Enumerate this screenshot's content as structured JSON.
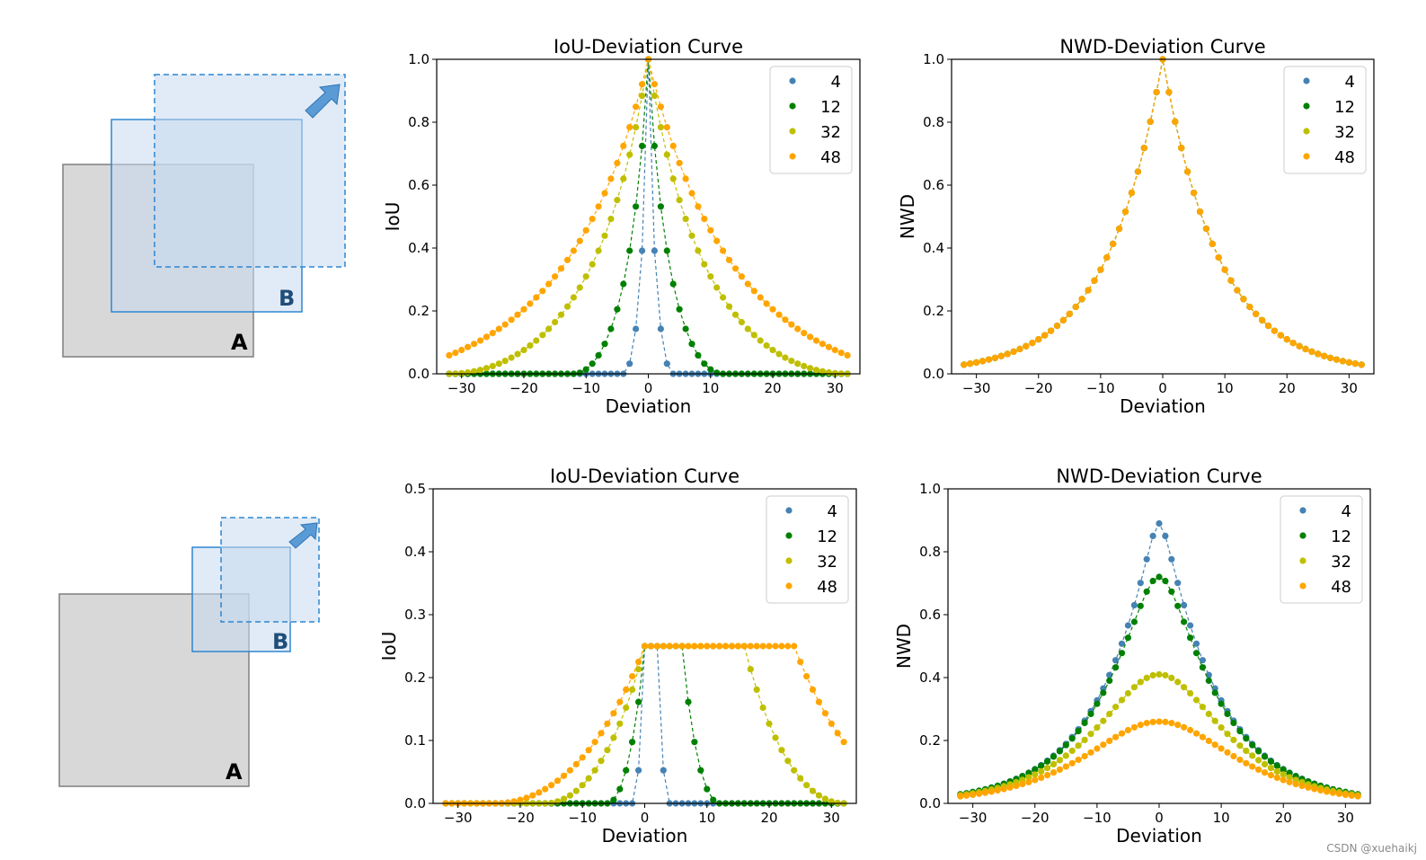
{
  "diagrams": [
    {
      "label_a": "A",
      "label_b": "B"
    },
    {
      "label_a": "A",
      "label_b": "B"
    }
  ],
  "colors": {
    "4": "#4682b4",
    "12": "#008000",
    "32": "#bfbf00",
    "48": "#ffa500",
    "box_a_fill": "#d6d6d6",
    "box_a_stroke": "#7f7f7f",
    "box_b_fill": "#c9daf0",
    "box_b_stroke": "#2e86d0",
    "label_b": "#1f4e79"
  },
  "chart_data": [
    {
      "id": "iou-top",
      "type": "scatter",
      "title": "IoU-Deviation Curve",
      "xlabel": "Deviation",
      "ylabel": "IoU",
      "xlim": [
        -34,
        34
      ],
      "ylim": [
        0,
        1.0
      ],
      "xticks": [
        -30,
        -20,
        -10,
        0,
        10,
        20,
        30
      ],
      "xtick_labels": [
        "−30",
        "−20",
        "−10",
        "0",
        "10",
        "20",
        "30"
      ],
      "yticks": [
        0.0,
        0.2,
        0.4,
        0.6,
        0.8,
        1.0
      ],
      "ytick_labels": [
        "0.0",
        "0.2",
        "0.4",
        "0.6",
        "0.8",
        "1.0"
      ],
      "legend": "top-right",
      "grid": false,
      "x": "deviation -32..32 step 1",
      "series": [
        {
          "name": "4",
          "box_size": 4,
          "curve": "iou_identical"
        },
        {
          "name": "12",
          "box_size": 12,
          "curve": "iou_identical"
        },
        {
          "name": "32",
          "box_size": 32,
          "curve": "iou_identical"
        },
        {
          "name": "48",
          "box_size": 48,
          "curve": "iou_identical"
        }
      ]
    },
    {
      "id": "nwd-top",
      "type": "scatter",
      "title": "NWD-Deviation Curve",
      "xlabel": "Deviation",
      "ylabel": "NWD",
      "xlim": [
        -34,
        34
      ],
      "ylim": [
        0,
        1.0
      ],
      "xticks": [
        -30,
        -20,
        -10,
        0,
        10,
        20,
        30
      ],
      "xtick_labels": [
        "−30",
        "−20",
        "−10",
        "0",
        "10",
        "20",
        "30"
      ],
      "yticks": [
        0.0,
        0.2,
        0.4,
        0.6,
        0.8,
        1.0
      ],
      "ytick_labels": [
        "0.0",
        "0.2",
        "0.4",
        "0.6",
        "0.8",
        "1.0"
      ],
      "legend": "top-right",
      "grid": false,
      "x": "deviation -32..32 step 1",
      "series": [
        {
          "name": "4",
          "box_size": 4,
          "curve": "nwd_identical"
        },
        {
          "name": "12",
          "box_size": 12,
          "curve": "nwd_identical"
        },
        {
          "name": "32",
          "box_size": 32,
          "curve": "nwd_identical"
        },
        {
          "name": "48",
          "box_size": 48,
          "curve": "nwd_identical"
        }
      ]
    },
    {
      "id": "iou-bottom",
      "type": "scatter",
      "title": "IoU-Deviation Curve",
      "xlabel": "Deviation",
      "ylabel": "IoU",
      "xlim": [
        -34,
        34
      ],
      "ylim": [
        0,
        0.5
      ],
      "xticks": [
        -30,
        -20,
        -10,
        0,
        10,
        20,
        30
      ],
      "xtick_labels": [
        "−30",
        "−20",
        "−10",
        "0",
        "10",
        "20",
        "30"
      ],
      "yticks": [
        0.0,
        0.1,
        0.2,
        0.3,
        0.4,
        0.5
      ],
      "ytick_labels": [
        "0.0",
        "0.1",
        "0.2",
        "0.3",
        "0.4",
        "0.5"
      ],
      "legend": "top-right",
      "grid": false,
      "x": "deviation -32..32 step 1",
      "series": [
        {
          "name": "4",
          "box_size": 4,
          "curve": "iou_half_size"
        },
        {
          "name": "12",
          "box_size": 12,
          "curve": "iou_half_size"
        },
        {
          "name": "32",
          "box_size": 32,
          "curve": "iou_half_size"
        },
        {
          "name": "48",
          "box_size": 48,
          "curve": "iou_half_size"
        }
      ]
    },
    {
      "id": "nwd-bottom",
      "type": "scatter",
      "title": "NWD-Deviation Curve",
      "xlabel": "Deviation",
      "ylabel": "NWD",
      "xlim": [
        -34,
        34
      ],
      "ylim": [
        0,
        1.0
      ],
      "xticks": [
        -30,
        -20,
        -10,
        0,
        10,
        20,
        30
      ],
      "xtick_labels": [
        "−30",
        "−20",
        "−10",
        "0",
        "10",
        "20",
        "30"
      ],
      "yticks": [
        0.0,
        0.2,
        0.4,
        0.6,
        0.8,
        1.0
      ],
      "ytick_labels": [
        "0.0",
        "0.2",
        "0.4",
        "0.6",
        "0.8",
        "1.0"
      ],
      "legend": "top-right",
      "grid": false,
      "x": "deviation -32..32 step 1",
      "series": [
        {
          "name": "4",
          "box_size": 4,
          "curve": "nwd_half_size",
          "peak": 0.89
        },
        {
          "name": "12",
          "box_size": 12,
          "curve": "nwd_half_size",
          "peak": 0.72
        },
        {
          "name": "32",
          "box_size": 32,
          "curve": "nwd_half_size",
          "peak": 0.41
        },
        {
          "name": "48",
          "box_size": 48,
          "curve": "nwd_half_size",
          "peak": 0.26
        }
      ]
    }
  ],
  "watermark": "CSDN @xuehaikj"
}
